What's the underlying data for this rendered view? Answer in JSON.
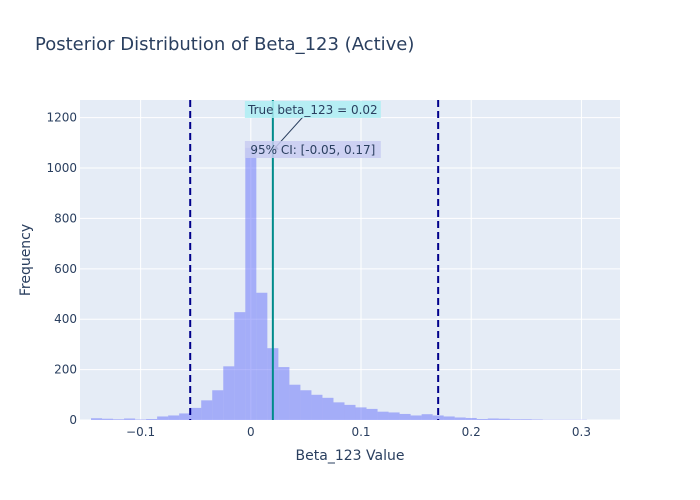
{
  "chart_data": {
    "type": "bar",
    "title": "Posterior Distribution of Beta_123 (Active)",
    "xlabel": "Beta_123 Value",
    "ylabel": "Frequency",
    "xlim": [
      -0.155,
      0.335
    ],
    "ylim": [
      0,
      1270
    ],
    "x_ticks": [
      -0.1,
      0,
      0.1,
      0.2,
      0.3
    ],
    "x_tick_labels": [
      "−0.1",
      "0",
      "0.1",
      "0.2",
      "0.3"
    ],
    "y_ticks": [
      0,
      200,
      400,
      600,
      800,
      1000,
      1200
    ],
    "y_tick_labels": [
      "0",
      "200",
      "400",
      "600",
      "800",
      "1000",
      "1200"
    ],
    "bin_start": -0.145,
    "bin_width": 0.01,
    "series": [
      {
        "values": [
          7,
          5,
          3,
          6,
          2,
          4,
          14,
          18,
          26,
          48,
          78,
          118,
          213,
          428,
          1080,
          505,
          285,
          210,
          140,
          118,
          100,
          88,
          70,
          60,
          50,
          44,
          33,
          30,
          24,
          18,
          23,
          18,
          14,
          10,
          8,
          4,
          6,
          5,
          3,
          3,
          2,
          1,
          1,
          1,
          1
        ],
        "color": "#636efa",
        "opacity": 0.5
      }
    ],
    "vlines": [
      {
        "x": -0.055,
        "color": "#00008b",
        "style": "dash"
      },
      {
        "x": 0.17,
        "color": "#00008b",
        "style": "dash"
      },
      {
        "x": 0.02,
        "color": "#008b8b",
        "style": "solid"
      }
    ],
    "annotations": [
      {
        "text": "True beta_123 = 0.02",
        "bg": "#aeeef3",
        "arrow_to": {
          "x": 0.02,
          "y": 1070
        }
      },
      {
        "text": "95% CI: [-0.05, 0.17]",
        "bg": "#c9cdf1"
      }
    ],
    "grid": true,
    "legend": "none"
  }
}
